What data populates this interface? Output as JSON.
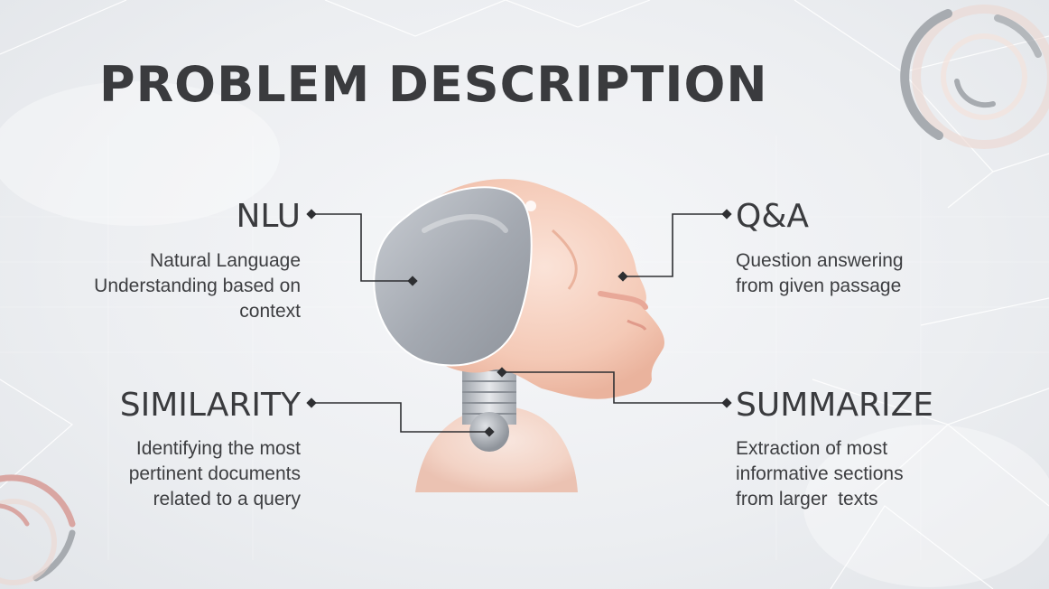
{
  "title": "PROBLEM DESCRIPTION",
  "features": {
    "nlu": {
      "heading": "NLU",
      "description": "Natural Language Understanding based on context"
    },
    "qa": {
      "heading": "Q&A",
      "description": "Question answering from given passage"
    },
    "similarity": {
      "heading": "SIMILARITY",
      "description": "Identifying the most pertinent documents related to a query"
    },
    "summarize": {
      "heading": "SUMMARIZE",
      "description": "Extraction of most informative sections from larger  texts"
    }
  },
  "colors": {
    "text": "#3a3b3e",
    "accent_peach": "#f2c7b4",
    "visor_gray": "#a8adb5",
    "ring_gray": "#a7abb0",
    "ring_pink": "#d9a6a2"
  },
  "icons": [
    "robot-head-illustration",
    "decorative-ring-icon"
  ]
}
